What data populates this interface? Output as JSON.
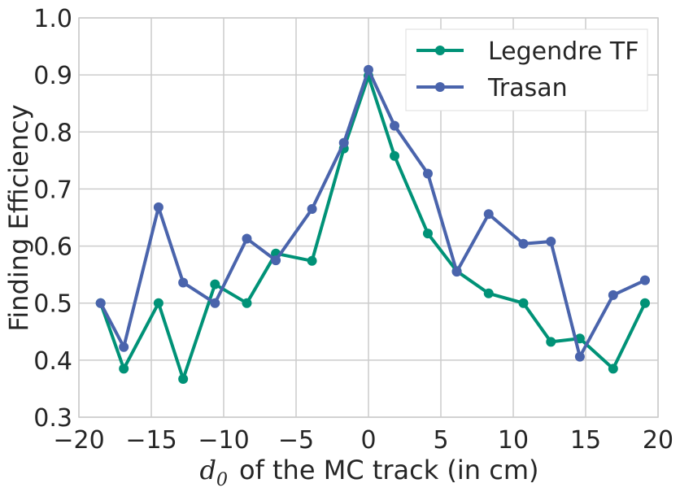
{
  "chart_data": {
    "type": "line",
    "xlabel_symbol": "d",
    "xlabel_subscript": "0",
    "xlabel": "of the MC track (in cm)",
    "ylabel": "Finding Efficiency",
    "xlim": [
      -20,
      20
    ],
    "ylim": [
      0.3,
      1.0
    ],
    "xticks": [
      -20,
      -15,
      -10,
      -5,
      0,
      5,
      10,
      15,
      20
    ],
    "xtick_labels": [
      "−20",
      "−15",
      "−10",
      "−5",
      "0",
      "5",
      "10",
      "15",
      "20"
    ],
    "yticks": [
      0.3,
      0.4,
      0.5,
      0.6,
      0.7,
      0.8,
      0.9,
      1.0
    ],
    "ytick_labels": [
      "0.3",
      "0.4",
      "0.5",
      "0.6",
      "0.7",
      "0.8",
      "0.9",
      "1.0"
    ],
    "grid": true,
    "legend_position": "top-right",
    "x": [
      -18.5,
      -16.9,
      -14.5,
      -12.8,
      -10.6,
      -8.4,
      -6.4,
      -3.9,
      -1.7,
      0,
      1.8,
      4.1,
      6.1,
      8.3,
      10.7,
      12.6,
      14.6,
      16.9,
      19.1
    ],
    "series": [
      {
        "name": "Legendre TF",
        "color": "#009277",
        "values": [
          0.5,
          0.385,
          0.5,
          0.367,
          0.533,
          0.5,
          0.587,
          0.574,
          0.771,
          0.898,
          0.758,
          0.622,
          0.556,
          0.517,
          0.5,
          0.432,
          0.438,
          0.385,
          0.5
        ]
      },
      {
        "name": "Trasan",
        "color": "#4a64ac",
        "values": [
          0.5,
          0.423,
          0.668,
          0.536,
          0.5,
          0.613,
          0.575,
          0.665,
          0.781,
          0.909,
          0.811,
          0.727,
          0.555,
          0.656,
          0.604,
          0.608,
          0.406,
          0.514,
          0.54
        ]
      }
    ]
  }
}
